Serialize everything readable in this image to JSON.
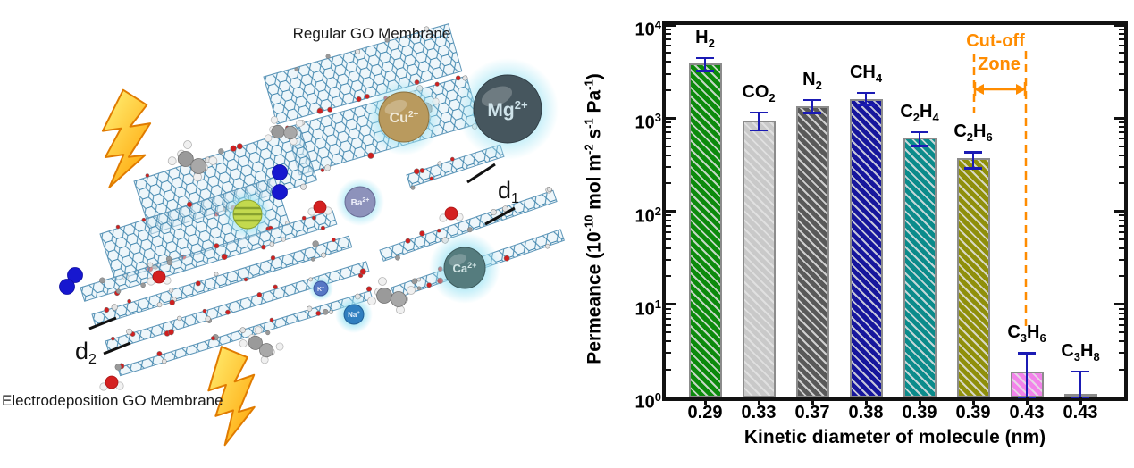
{
  "left_panel": {
    "title_top": "Regular GO Membrane",
    "title_bottom": "Electrodeposition GO Membrane",
    "d1": {
      "main": "d",
      "sub": "1"
    },
    "d2": {
      "main": "d",
      "sub": "2"
    },
    "ions": [
      {
        "name": "Mg2+",
        "main": "Mg",
        "sup": "2+",
        "color": "#46565e"
      },
      {
        "name": "Cu2+",
        "main": "Cu",
        "sup": "2+",
        "color": "#b99a5e"
      },
      {
        "name": "Ba2+",
        "main": "Ba",
        "sup": "2+",
        "color": "#8d92bb"
      },
      {
        "name": "Ca2+",
        "main": "Ca",
        "sup": "2+",
        "color": "#557c7e"
      },
      {
        "name": "Na+",
        "main": "Na",
        "sup": "+",
        "color": "#2f7fc0"
      },
      {
        "name": "K+",
        "main": "K",
        "sup": "+",
        "color": "#5577c5"
      }
    ]
  },
  "chart_data": {
    "type": "bar",
    "title": "",
    "xlabel": "Kinetic diameter of molecule (nm)",
    "ylabel": "Permeance (10-10 mol m-2 s-1 Pa-1)",
    "ylabel_segments": [
      {
        "t": "Permeance (10"
      },
      {
        "t": "-10",
        "sup": true
      },
      {
        "t": " mol m"
      },
      {
        "t": "-2",
        "sup": true
      },
      {
        "t": " s"
      },
      {
        "t": "-1",
        "sup": true
      },
      {
        "t": " Pa"
      },
      {
        "t": "-1",
        "sup": true
      },
      {
        "t": ")"
      }
    ],
    "y_scale": "log",
    "ylim": [
      1,
      10000
    ],
    "grid": false,
    "legend": null,
    "y_ticks": [
      {
        "base": "10",
        "exp": "0",
        "value": 1
      },
      {
        "base": "10",
        "exp": "1",
        "value": 10
      },
      {
        "base": "10",
        "exp": "2",
        "value": 100
      },
      {
        "base": "10",
        "exp": "3",
        "value": 1000
      },
      {
        "base": "10",
        "exp": "4",
        "value": 10000
      }
    ],
    "categories": [
      "H2",
      "CO2",
      "N2",
      "CH4",
      "C2H4",
      "C2H6",
      "C3H6",
      "C3H8"
    ],
    "category_segments": [
      [
        {
          "t": "H"
        },
        {
          "t": "2",
          "sub": true
        }
      ],
      [
        {
          "t": "CO"
        },
        {
          "t": "2",
          "sub": true
        }
      ],
      [
        {
          "t": "N"
        },
        {
          "t": "2",
          "sub": true
        }
      ],
      [
        {
          "t": "CH"
        },
        {
          "t": "4",
          "sub": true
        }
      ],
      [
        {
          "t": "C"
        },
        {
          "t": "2",
          "sub": true
        },
        {
          "t": "H"
        },
        {
          "t": "4",
          "sub": true
        }
      ],
      [
        {
          "t": "C"
        },
        {
          "t": "2",
          "sub": true
        },
        {
          "t": "H"
        },
        {
          "t": "6",
          "sub": true
        }
      ],
      [
        {
          "t": "C"
        },
        {
          "t": "3",
          "sub": true
        },
        {
          "t": "H"
        },
        {
          "t": "6",
          "sub": true
        }
      ],
      [
        {
          "t": "C"
        },
        {
          "t": "3",
          "sub": true
        },
        {
          "t": "H"
        },
        {
          "t": "8",
          "sub": true
        }
      ]
    ],
    "x_tick_labels": [
      "0.29",
      "0.33",
      "0.37",
      "0.38",
      "0.39",
      "0.39",
      "0.43",
      "0.43"
    ],
    "values": [
      3900,
      940,
      1340,
      1600,
      620,
      370,
      1.9,
      1.1
    ],
    "error_high": [
      4400,
      1150,
      1560,
      1870,
      710,
      430,
      3.0,
      1.9
    ],
    "error_low": [
      3200,
      740,
      1130,
      1380,
      500,
      290,
      1.0,
      1.0
    ],
    "bar_colors": [
      "#0c8a0c",
      "#c9c9c9",
      "#595959",
      "#16169c",
      "#0b8b8b",
      "#8f8f0b",
      "#f283ea",
      "#ff7f00"
    ],
    "bar_border_color": "#8c8c8c",
    "error_bar_color": "#1b1bb4",
    "annotation": {
      "line1": "Cut-off",
      "line2": "Zone",
      "color": "#ff8c00"
    }
  }
}
